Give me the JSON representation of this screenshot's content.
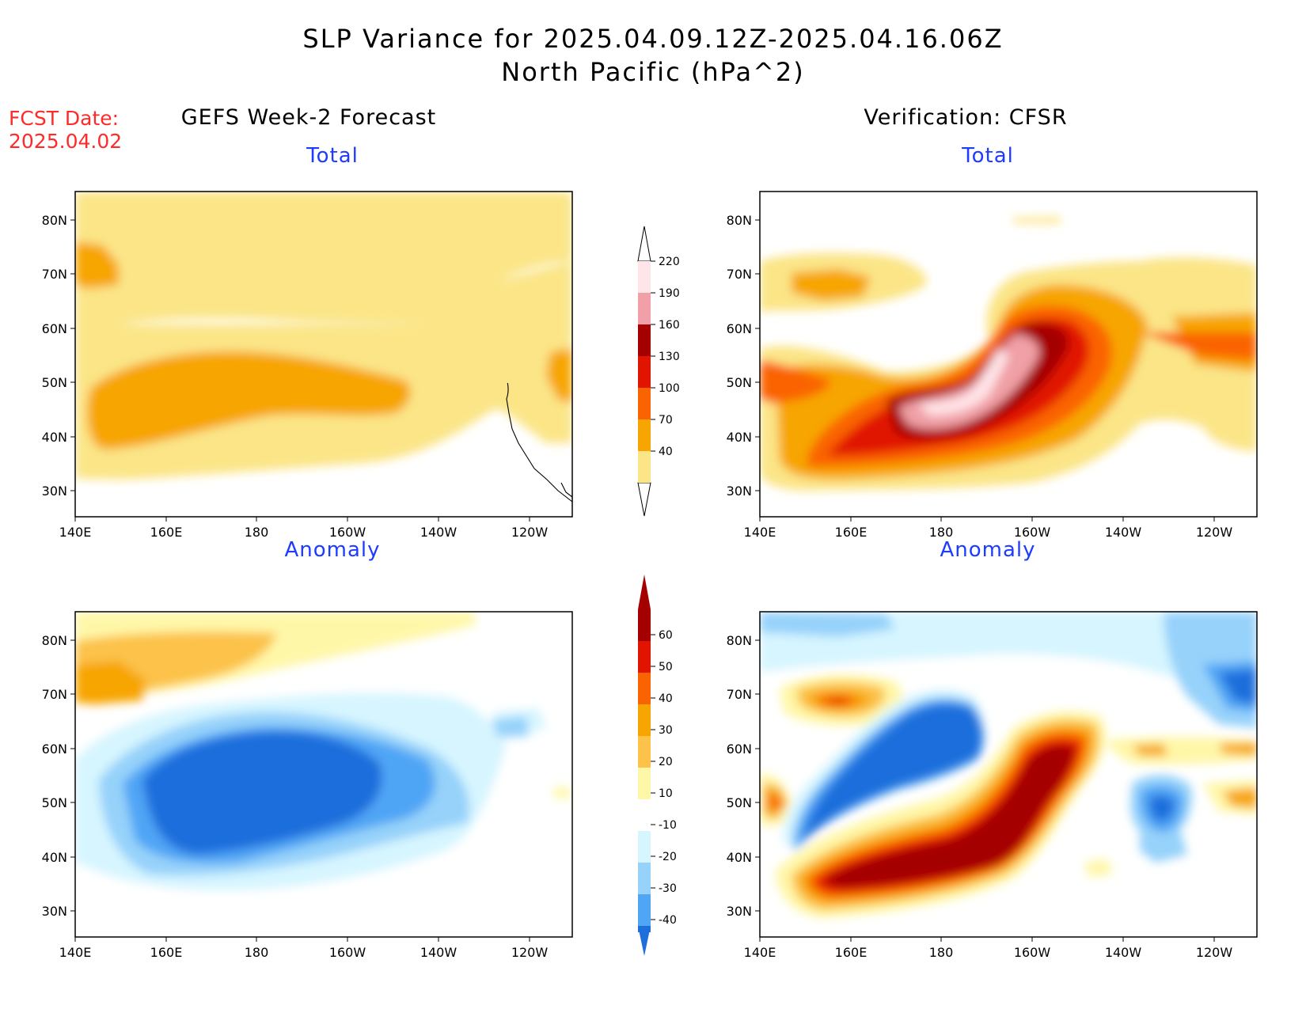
{
  "header": {
    "title_line1": "SLP Variance for 2025.04.09.12Z-2025.04.16.06Z",
    "title_line2": "North Pacific (hPa^2)",
    "fcst_label": "FCST Date:",
    "fcst_date": "2025.04.02"
  },
  "columns": {
    "left": "GEFS Week-2 Forecast",
    "right": "Verification: CFSR"
  },
  "panels": {
    "total_label": "Total",
    "anomaly_label": "Anomaly"
  },
  "axes": {
    "x_ticks": [
      "140E",
      "160E",
      "180",
      "160W",
      "140W",
      "120W"
    ],
    "y_ticks": [
      "80N",
      "70N",
      "60N",
      "50N",
      "40N",
      "30N"
    ]
  },
  "colorbars": {
    "total": {
      "levels": [
        "40",
        "70",
        "100",
        "130",
        "160",
        "190",
        "220"
      ],
      "colors": [
        "#fbe587",
        "#f7a500",
        "#fa6400",
        "#e11400",
        "#a50000",
        "#f0a0a6",
        "#ffe4e8"
      ]
    },
    "anomaly": {
      "levels": [
        "60",
        "50",
        "40",
        "30",
        "20",
        "10",
        "-10",
        "-20",
        "-30",
        "-40"
      ],
      "colors": [
        "#a50000",
        "#e11400",
        "#fa6400",
        "#f7a500",
        "#fcc24a",
        "#fff7a8",
        "#ffffff",
        "#d6f5ff",
        "#96d2fa",
        "#50a5f5",
        "#1e6edc"
      ]
    }
  }
}
